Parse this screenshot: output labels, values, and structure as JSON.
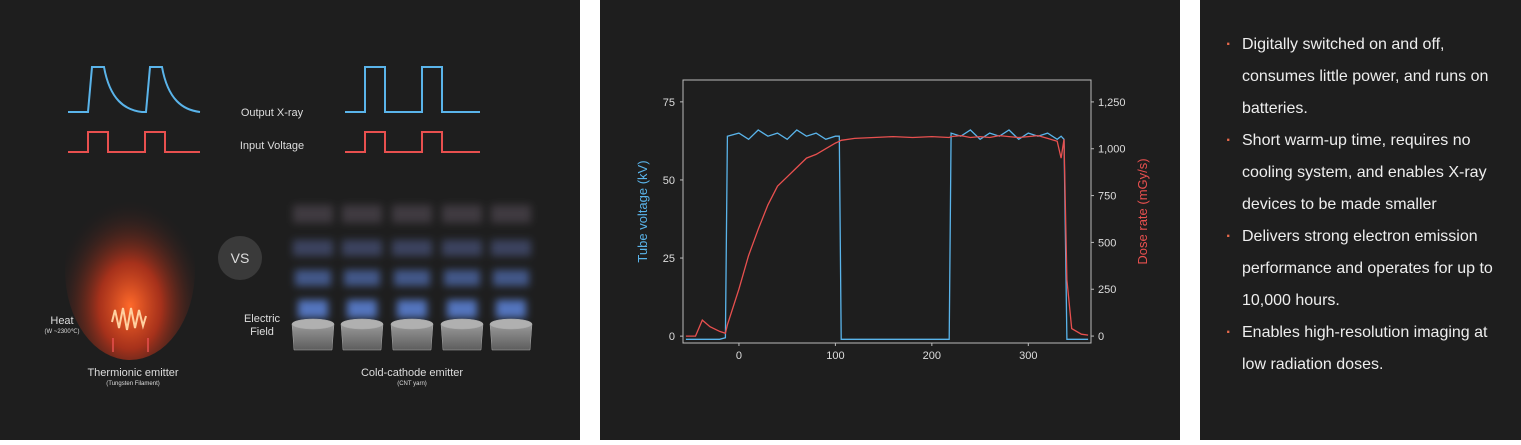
{
  "diagram": {
    "output_label": "Output X-ray",
    "input_label": "Input Voltage",
    "vs": "VS",
    "heat": "Heat",
    "heat_note": "(W ~2300℃)",
    "field_line1": "Electric",
    "field_line2": "Field",
    "thermionic": "Thermionic emitter",
    "thermionic_note": "(Tungsten Filament)",
    "cold": "Cold-cathode emitter",
    "cold_note": "(CNT yarn)"
  },
  "chart_data": {
    "type": "line",
    "x": [
      -55,
      -45,
      -38,
      -30,
      -20,
      -14,
      -12,
      0,
      10,
      20,
      30,
      40,
      50,
      60,
      70,
      80,
      90,
      100,
      104,
      106,
      120,
      140,
      160,
      180,
      200,
      218,
      220,
      230,
      240,
      250,
      260,
      270,
      280,
      290,
      300,
      310,
      320,
      330,
      334,
      337,
      340,
      345,
      355,
      362
    ],
    "series": [
      {
        "name": "Tube voltage (kV)",
        "color": "#5ab4ea",
        "values": [
          -1,
          -1,
          -1,
          -1,
          -1,
          -0.5,
          64,
          65,
          63,
          66,
          64,
          65,
          63,
          66,
          64,
          65,
          63,
          64,
          64,
          -1,
          -1,
          -1,
          -1,
          -1,
          -1,
          -1,
          65,
          64,
          66,
          63,
          65,
          64,
          66,
          63,
          65,
          64,
          65,
          63,
          64,
          63,
          -1,
          -1,
          -1,
          -1
        ]
      },
      {
        "name": "Dose rate (mGy/s)",
        "color": "#e8504f",
        "axis": "y2",
        "values": [
          0,
          0,
          85,
          50,
          25,
          15,
          60,
          250,
          430,
          570,
          700,
          800,
          850,
          900,
          950,
          970,
          1000,
          1030,
          1040,
          1045,
          1055,
          1060,
          1065,
          1060,
          1065,
          1060,
          1065,
          1070,
          1060,
          1065,
          1060,
          1070,
          1065,
          1060,
          1065,
          1070,
          1055,
          1040,
          950,
          1050,
          300,
          40,
          10,
          5
        ]
      }
    ],
    "xlim": [
      -58,
      365
    ],
    "xticks": [
      0,
      100,
      200,
      300
    ],
    "ylim": [
      -2.2,
      82
    ],
    "yticks": [
      0,
      25,
      50,
      75
    ],
    "y2lim": [
      -37,
      1367
    ],
    "y2ticks": [
      0,
      250,
      500,
      750,
      {
        "value": 1000,
        "label": "1,000"
      },
      {
        "value": 1250,
        "label": "1,250"
      }
    ]
  },
  "bullets": [
    "Digitally switched on and off, consumes little power, and runs on batteries.",
    "Short warm-up time, requires no cooling system, and enables X-ray devices to be made smaller",
    "Delivers strong electron emission performance and operates for up to 10,000 hours.",
    "Enables high-resolution imaging at low radiation doses."
  ]
}
